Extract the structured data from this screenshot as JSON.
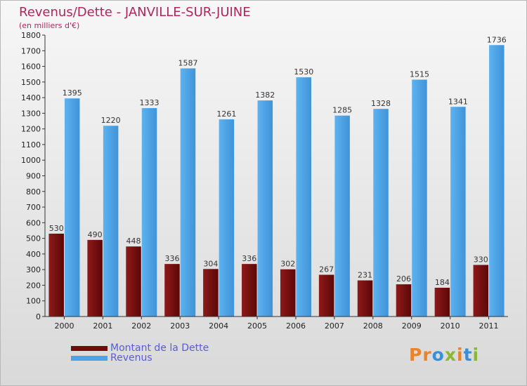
{
  "title": "Revenus/Dette - JANVILLE-SUR-JUINE",
  "subtitle": "(en milliers d'€)",
  "colors": {
    "debt": "#6e0b0b",
    "revenue": "#4ea3e6",
    "title": "#b0255a"
  },
  "logo": {
    "text": "Proxiti"
  },
  "chart_data": {
    "type": "bar",
    "title": "Revenus/Dette - JANVILLE-SUR-JUINE",
    "ylabel": "(en milliers d'€)",
    "xlabel": "",
    "categories": [
      "2000",
      "2001",
      "2002",
      "2003",
      "2004",
      "2005",
      "2006",
      "2007",
      "2008",
      "2009",
      "2010",
      "2011"
    ],
    "series": [
      {
        "name": "Montant de la Dette",
        "values": [
          530,
          490,
          448,
          336,
          304,
          336,
          302,
          267,
          231,
          206,
          184,
          330
        ]
      },
      {
        "name": "Revenus",
        "values": [
          1395,
          1220,
          1333,
          1587,
          1261,
          1382,
          1530,
          1285,
          1328,
          1515,
          1341,
          1736
        ]
      }
    ],
    "ylim": [
      0,
      1800
    ],
    "yticks": [
      0,
      100,
      200,
      300,
      400,
      500,
      600,
      700,
      800,
      900,
      1000,
      1100,
      1200,
      1300,
      1400,
      1500,
      1600,
      1700,
      1800
    ],
    "grid": false,
    "legend": "bottom-left"
  }
}
